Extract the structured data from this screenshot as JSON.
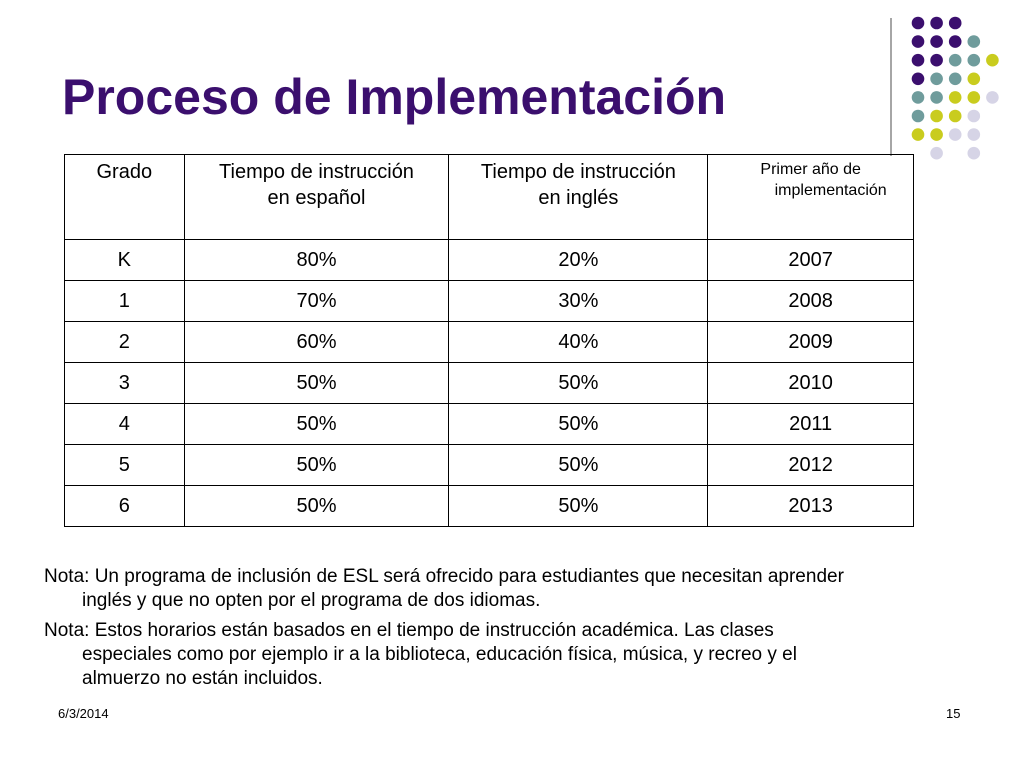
{
  "slide": {
    "title": "Proceso de Implementación",
    "title_color": "#3b0f6e",
    "table": {
      "headers": [
        {
          "lines": [
            "Grado"
          ]
        },
        {
          "lines": [
            "Tiempo de instrucción",
            "en español"
          ]
        },
        {
          "lines": [
            "Tiempo de instrucción",
            "en inglés"
          ]
        },
        {
          "lines": [
            "Primer año de",
            "implementación"
          ]
        }
      ],
      "rows": [
        {
          "grado": "K",
          "espanol": "80%",
          "ingles": "20%",
          "anio": "2007"
        },
        {
          "grado": "1",
          "espanol": "70%",
          "ingles": "30%",
          "anio": "2008"
        },
        {
          "grado": "2",
          "espanol": "60%",
          "ingles": "40%",
          "anio": "2009"
        },
        {
          "grado": "3",
          "espanol": "50%",
          "ingles": "50%",
          "anio": "2010"
        },
        {
          "grado": "4",
          "espanol": "50%",
          "ingles": "50%",
          "anio": "2011"
        },
        {
          "grado": "5",
          "espanol": "50%",
          "ingles": "50%",
          "anio": "2012"
        },
        {
          "grado": "6",
          "espanol": "50%",
          "ingles": "50%",
          "anio": "2013"
        }
      ]
    },
    "notes": [
      "Nota: Un programa de inclusión de ESL será ofrecido para estudiantes que necesitan aprender inglés y que no opten por el programa de dos idiomas.",
      "Nota: Estos horarios están basados en el tiempo de instrucción académica.  Las clases especiales como por ejemplo ir a la biblioteca, educación física, música, y recreo y el almuerzo no están incluidos."
    ],
    "footer": {
      "date": "6/3/2014",
      "page": "15"
    },
    "decor": {
      "dot_colors": {
        "purple": "#3b0f6e",
        "teal": "#6f9c9c",
        "yellow": "#c9cc1e",
        "lavender": "#d6d4e6"
      },
      "dot_grid": [
        [
          "purple",
          "purple",
          "purple",
          null
        ],
        [
          "purple",
          "purple",
          "purple",
          "teal"
        ],
        [
          "purple",
          "purple",
          "teal",
          "teal",
          "yellow"
        ],
        [
          "purple",
          "teal",
          "teal",
          "yellow"
        ],
        [
          "teal",
          "teal",
          "yellow",
          "yellow",
          "lavender"
        ],
        [
          "teal",
          "yellow",
          "yellow",
          "lavender"
        ],
        [
          "yellow",
          "yellow",
          "lavender",
          "lavender"
        ],
        [
          null,
          "lavender",
          null,
          "lavender"
        ]
      ]
    }
  }
}
